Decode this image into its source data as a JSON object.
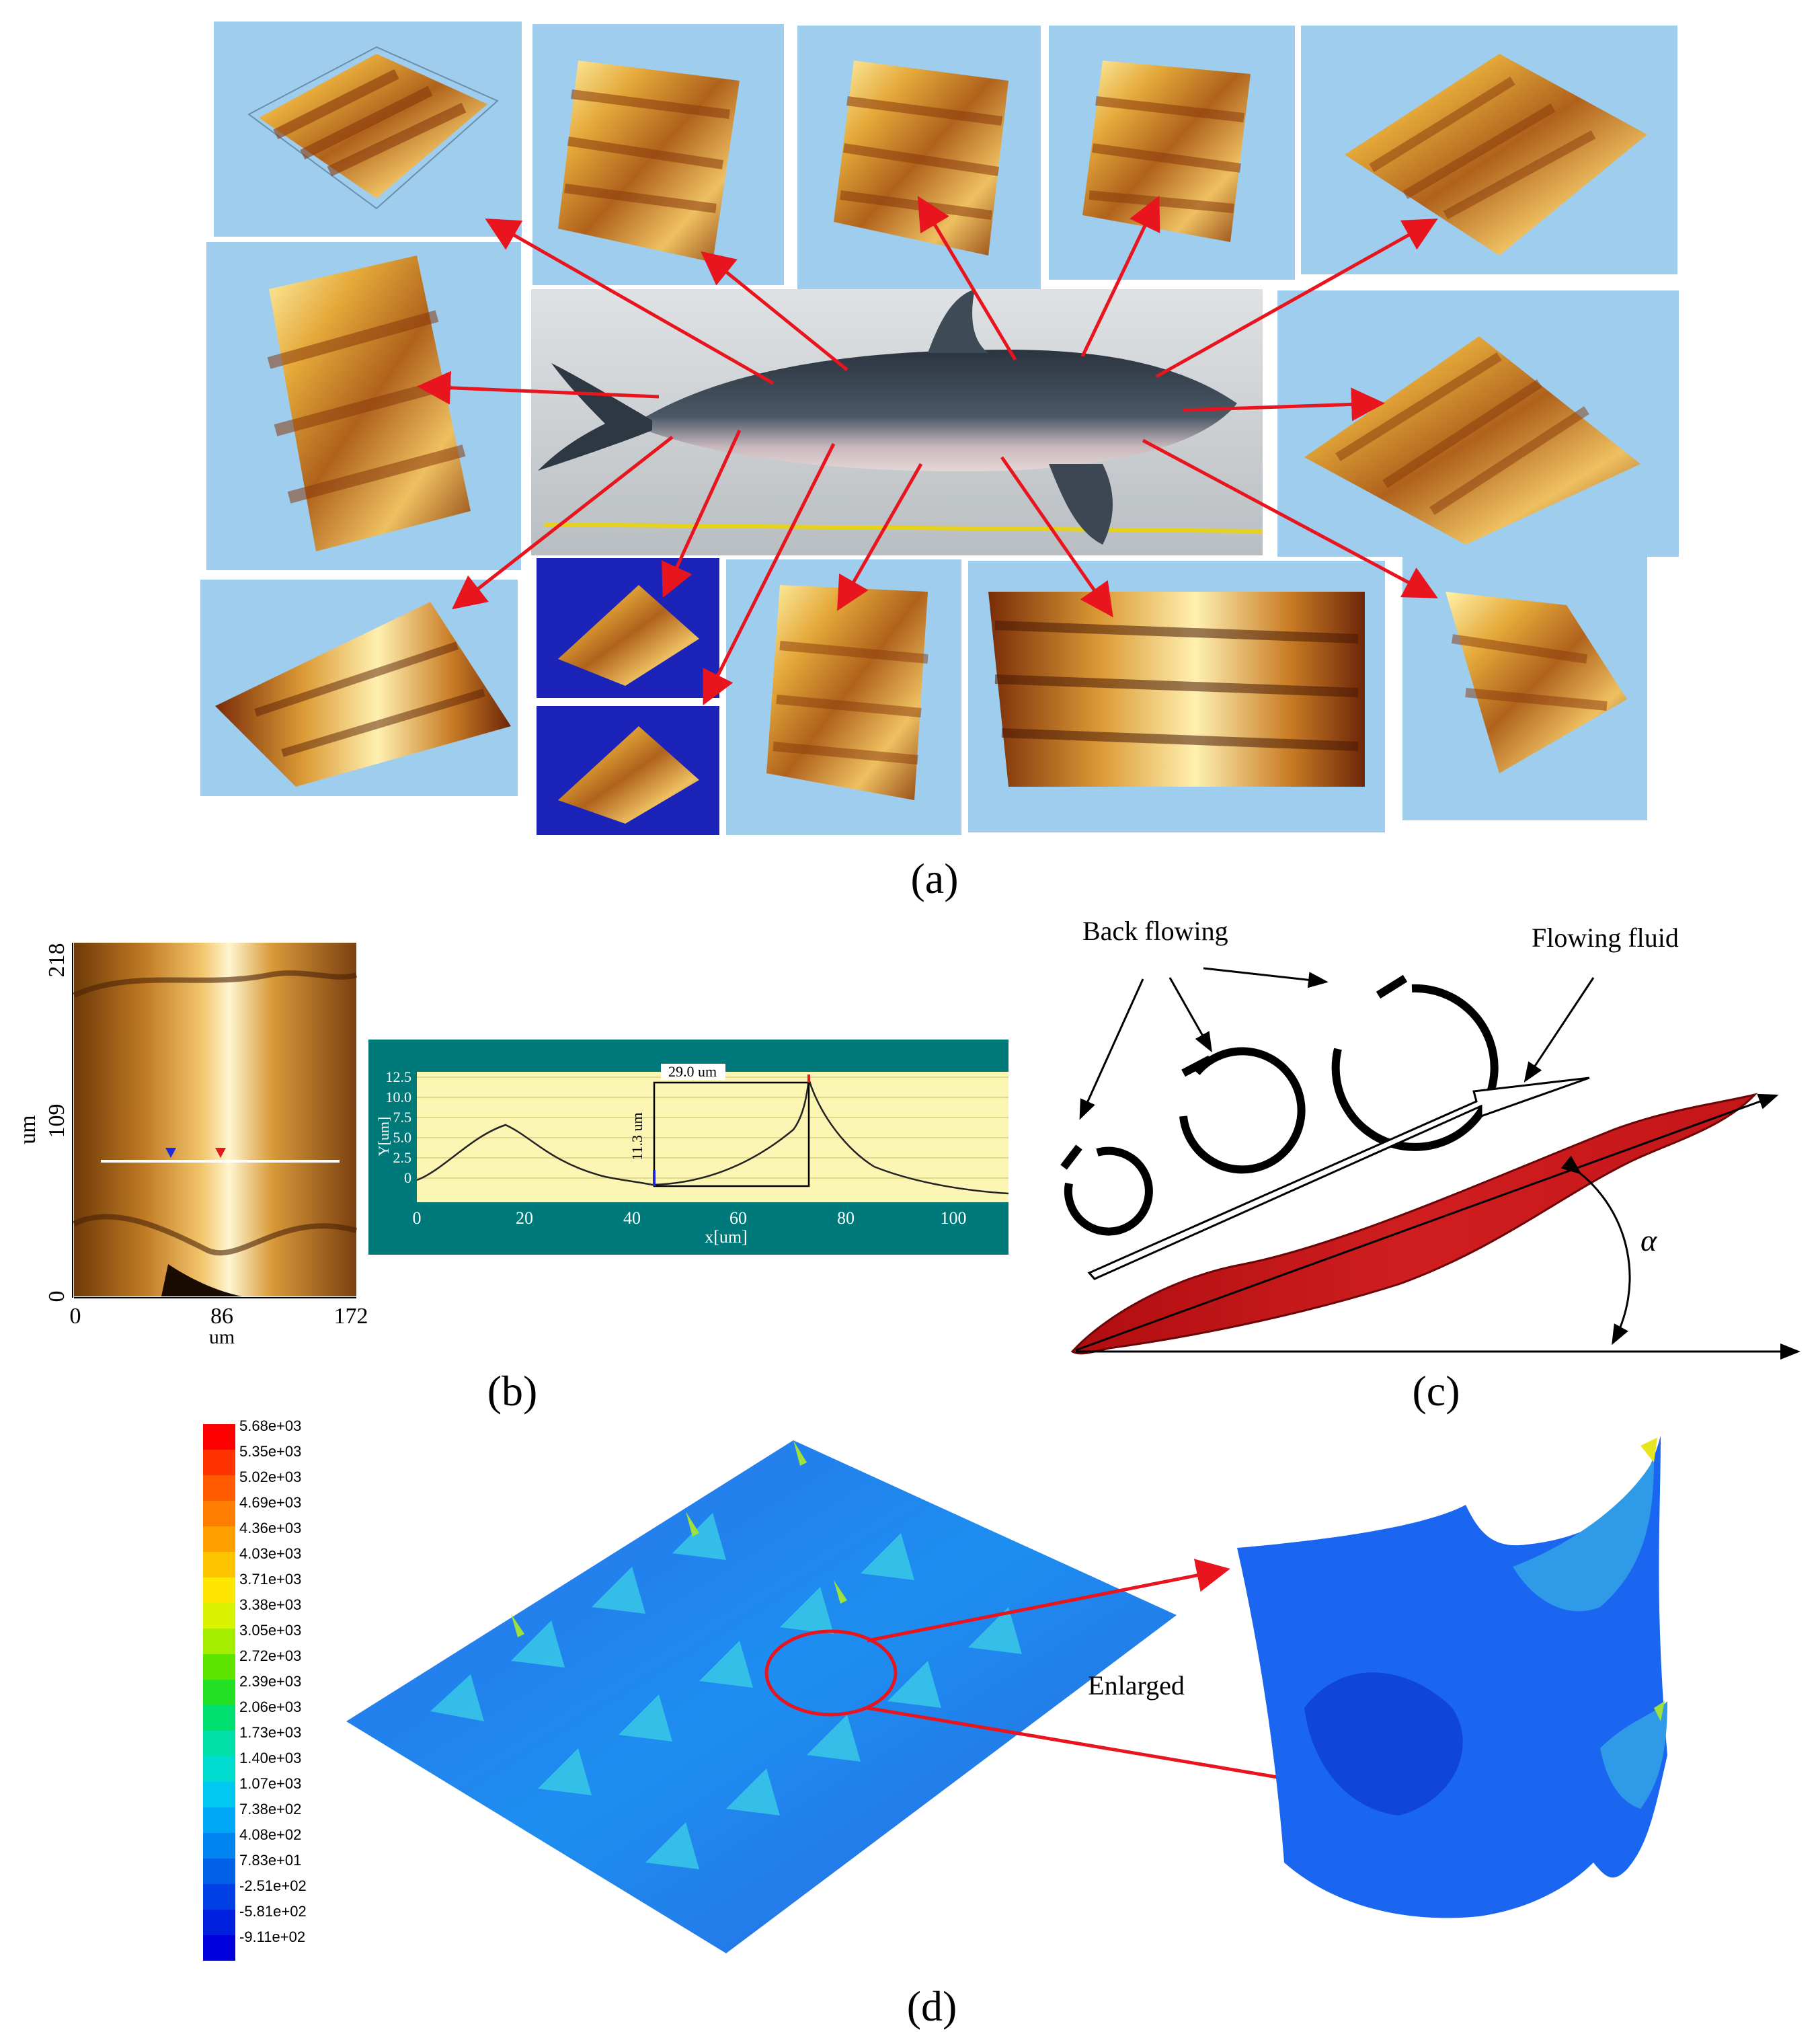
{
  "panels": {
    "a": {
      "label": "(a)"
    },
    "b": {
      "label": "(b)",
      "map": {
        "y_axis_label": "um",
        "y_ticks": [
          "218",
          "109",
          "0"
        ],
        "x_axis_label": "um",
        "x_ticks": [
          "0",
          "86",
          "172"
        ]
      },
      "profile": {
        "y_axis_label": "Y[um]",
        "x_axis_label": "x[um]",
        "y_ticks": [
          "12.5",
          "10.0",
          "7.5",
          "5.0",
          "2.5",
          "0"
        ],
        "x_ticks": [
          "0",
          "20",
          "40",
          "60",
          "80",
          "100"
        ],
        "width_annotation": "29.0 um",
        "height_annotation": "11.3 um"
      }
    },
    "c": {
      "label": "(c)",
      "back_flowing_label": "Back flowing",
      "flowing_fluid_label": "Flowing fluid",
      "angle_symbol": "α"
    },
    "d": {
      "label": "(d)",
      "enlarged_label": "Enlarged",
      "legend_values": [
        "5.68e+03",
        "5.35e+03",
        "5.02e+03",
        "4.69e+03",
        "4.36e+03",
        "4.03e+03",
        "3.71e+03",
        "3.38e+03",
        "3.05e+03",
        "2.72e+03",
        "2.39e+03",
        "2.06e+03",
        "1.73e+03",
        "1.40e+03",
        "1.07e+03",
        "7.38e+02",
        "4.08e+02",
        "7.83e+01",
        "-2.51e+02",
        "-5.81e+02",
        "-9.11e+02"
      ],
      "legend_colors": [
        "#ff0000",
        "#ff3300",
        "#ff5a00",
        "#ff7d00",
        "#ffa000",
        "#ffc400",
        "#ffe600",
        "#d8f200",
        "#a6ee00",
        "#5fe400",
        "#24e024",
        "#00e070",
        "#00e0a8",
        "#00dcd0",
        "#00c8f0",
        "#00a8f8",
        "#0084f0",
        "#0060e8",
        "#0040e4",
        "#0020e0",
        "#0000dc"
      ]
    }
  },
  "colors": {
    "afm_bg": "#9fcdee",
    "arrow": "#e8141e",
    "scale_red": "#b01515",
    "profile_teal": "#00797a",
    "profile_plot": "#fbf6b3"
  }
}
